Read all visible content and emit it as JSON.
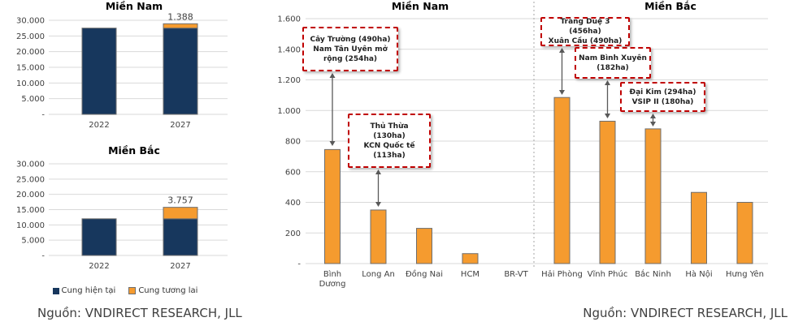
{
  "page": {
    "footer_left": "Nguồn: VNDIRECT RESEARCH, JLL",
    "footer_right": "Nguồn: VNDIRECT RESEARCH, JLL"
  },
  "colors": {
    "current_supply": "#17375D",
    "future_supply": "#F59B2F",
    "bar_border": "#6E6E6E",
    "gridline": "#D9D9D9",
    "axis_text": "#404040",
    "callout_border": "#C00000",
    "callout_text": "#1F1F1F",
    "arrow": "#595959",
    "separator": "#A6A6A6"
  },
  "legend": {
    "items": [
      {
        "label": "Cung hiện tại",
        "color": "#17375D"
      },
      {
        "label": "Cung tương lai",
        "color": "#F59B2F"
      }
    ]
  },
  "chart_data": [
    {
      "id": "south-supply",
      "type": "bar",
      "stacked": true,
      "title": "Miền Nam",
      "categories": [
        "2022",
        "2027"
      ],
      "series": [
        {
          "name": "Cung hiện tại",
          "color": "#17375D",
          "values": [
            27500,
            27500
          ]
        },
        {
          "name": "Cung tương lai",
          "color": "#F59B2F",
          "values": [
            0,
            1388
          ]
        }
      ],
      "data_labels": [
        {
          "category_index": 1,
          "text": "1.388"
        }
      ],
      "ylim": [
        0,
        30000
      ],
      "yticks": [
        0,
        5000,
        10000,
        15000,
        20000,
        25000,
        30000
      ],
      "ytick_labels": [
        "-",
        "5.000",
        "10.000",
        "15.000",
        "20.000",
        "25.000",
        "30.000"
      ],
      "grid": true,
      "legend_position": "bottom-shared"
    },
    {
      "id": "north-supply",
      "type": "bar",
      "stacked": true,
      "title": "Miền Bắc",
      "categories": [
        "2022",
        "2027"
      ],
      "series": [
        {
          "name": "Cung hiện tại",
          "color": "#17375D",
          "values": [
            12000,
            12000
          ]
        },
        {
          "name": "Cung tương lai",
          "color": "#F59B2F",
          "values": [
            0,
            3757
          ]
        }
      ],
      "data_labels": [
        {
          "category_index": 1,
          "text": "3.757"
        }
      ],
      "ylim": [
        0,
        30000
      ],
      "yticks": [
        0,
        5000,
        10000,
        15000,
        20000,
        25000,
        30000
      ],
      "ytick_labels": [
        "-",
        "5.000",
        "10.000",
        "15.000",
        "20.000",
        "25.000",
        "30.000"
      ],
      "grid": true,
      "legend_position": "bottom-shared"
    },
    {
      "id": "province-future-supply",
      "type": "bar",
      "bar_color": "#F59B2F",
      "ylim": [
        0,
        1600
      ],
      "yticks": [
        0,
        200,
        400,
        600,
        800,
        1000,
        1200,
        1400,
        1600
      ],
      "ytick_labels": [
        "-",
        "200",
        "400",
        "600",
        "800",
        "1.000",
        "1.200",
        "1.400",
        "1.600"
      ],
      "grid": true,
      "sections": [
        {
          "title": "Miền Nam",
          "categories": [
            "Bình Dương",
            "Long An",
            "Đồng Nai",
            "HCM",
            "BR-VT"
          ],
          "values": [
            745,
            350,
            230,
            65,
            0
          ]
        },
        {
          "title": "Miền Bắc",
          "categories": [
            "Hải Phòng",
            "Vĩnh Phúc",
            "Bắc Ninh",
            "Hà Nội",
            "Hưng Yên"
          ],
          "values": [
            1085,
            930,
            880,
            465,
            400
          ]
        }
      ],
      "annotations": [
        {
          "target": "Binh Duong",
          "lines": [
            "Cây Trường (490ha)",
            "Nam Tân Uyên mở",
            "rộng (254ha)"
          ]
        },
        {
          "target": "Long An",
          "lines": [
            "Thủ Thừa",
            "(130ha)",
            "KCN Quốc tế",
            "(113ha)"
          ]
        },
        {
          "target": "Hai Phong",
          "lines": [
            "Tràng Duệ 3 (456ha)",
            "Xuân Cầu (490ha)"
          ]
        },
        {
          "target": "Vinh Phuc",
          "lines": [
            "Nam Bình Xuyên",
            "(182ha)"
          ]
        },
        {
          "target": "Bac Ninh",
          "lines": [
            "Đại Kim (294ha)",
            "VSIP II (180ha)"
          ]
        }
      ]
    }
  ]
}
